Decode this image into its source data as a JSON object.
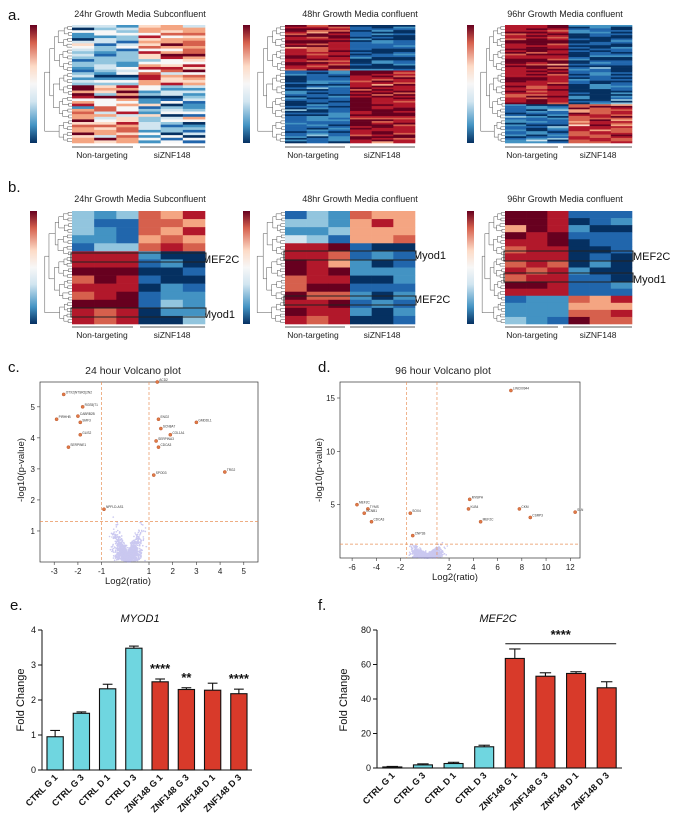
{
  "panels": {
    "a": "a.",
    "b": "b.",
    "c": "c.",
    "d": "d.",
    "e": "e.",
    "f": "f."
  },
  "heatmaps_a": [
    {
      "title": "24hr Growth Media Subconfluent",
      "group1": "Non-targeting",
      "group2": "siZNF148"
    },
    {
      "title": "48hr Growth Media confluent",
      "group1": "Non-targeting",
      "group2": "siZNF148"
    },
    {
      "title": "96hr Growth Media confluent",
      "group1": "Non-targeting",
      "group2": "siZNF148"
    }
  ],
  "heatmaps_b": [
    {
      "title": "24hr Growth Media Subconfluent",
      "group1": "Non-targeting",
      "group2": "siZNF148",
      "gene_top": "MEF2C",
      "gene_bottom": "Myod1"
    },
    {
      "title": "48hr Growth Media confluent",
      "group1": "Non-targeting",
      "group2": "siZNF148",
      "gene_top": "Myod1",
      "gene_bottom": "MEF2C"
    },
    {
      "title": "96hr Growth Media confluent",
      "group1": "Non-targeting",
      "group2": "siZNF148",
      "gene_top": "MEF2C",
      "gene_bottom": "Myod1"
    }
  ],
  "colors": {
    "red_dark": "#8b1a1a",
    "red": "#d7503a",
    "salmon": "#f4a582",
    "white": "#f7f7f7",
    "blue_light": "#92c5de",
    "blue": "#4a8cc6",
    "blue_dark": "#1f3e7a",
    "cyan_bar": "#6fd6e0",
    "red_bar": "#d83a2a",
    "volcano_pt": "#8b86e0"
  },
  "chart_data": [
    {
      "type": "scatter",
      "title": "24 hour Volcano plot",
      "xlabel": "Log2(ratio)",
      "ylabel": "-log10(p-value)",
      "xlim": [
        -3.6,
        5.6
      ],
      "ylim": [
        0,
        5.8
      ],
      "xticks": [
        "-3",
        "-2",
        "-1",
        "1",
        "2",
        "3",
        "4",
        "5"
      ],
      "yticks": [
        "1",
        "2",
        "3",
        "4",
        "5"
      ],
      "thresholds": {
        "x": [
          -1,
          1
        ],
        "y": 1.3
      },
      "labeled_points": [
        {
          "x": -2.6,
          "y": 5.4,
          "label": "OTX2|NTSR2|2N2"
        },
        {
          "x": -1.8,
          "y": 5.0,
          "label": "RGS5|T1"
        },
        {
          "x": -2.9,
          "y": 4.6,
          "label": "PIRHHB"
        },
        {
          "x": -2.0,
          "y": 4.7,
          "label": "CABRB2B"
        },
        {
          "x": -1.9,
          "y": 4.5,
          "label": "SMF3"
        },
        {
          "x": -1.9,
          "y": 4.1,
          "label": "GLIS2"
        },
        {
          "x": -2.4,
          "y": 3.7,
          "label": "SERPINE1"
        },
        {
          "x": -0.9,
          "y": 1.7,
          "label": "NPFLD-AS1"
        },
        {
          "x": 1.35,
          "y": 5.8,
          "label": "ACD2"
        },
        {
          "x": 1.4,
          "y": 4.6,
          "label": "ENO2"
        },
        {
          "x": 1.5,
          "y": 4.3,
          "label": "SCN8A7"
        },
        {
          "x": 1.3,
          "y": 3.9,
          "label": "SERPINA3"
        },
        {
          "x": 1.4,
          "y": 3.7,
          "label": "CDCA3"
        },
        {
          "x": 1.9,
          "y": 4.1,
          "label": "COL1A1"
        },
        {
          "x": 3.0,
          "y": 4.5,
          "label": "GMDDL1"
        },
        {
          "x": 4.2,
          "y": 2.9,
          "label": "TRG2"
        },
        {
          "x": 1.2,
          "y": 2.8,
          "label": "SPOD3"
        }
      ]
    },
    {
      "type": "scatter",
      "title": "96 hour Volcano plot",
      "xlabel": "Log2(ratio)",
      "ylabel": "-log10(p-value)",
      "xlim": [
        -7,
        12.8
      ],
      "ylim": [
        0,
        16.5
      ],
      "xticks": [
        "-6",
        "-4",
        "-2",
        "2",
        "4",
        "6",
        "8",
        "10",
        "12"
      ],
      "yticks": [
        "5",
        "10",
        "15"
      ],
      "thresholds": {
        "x": [
          -1.5,
          1
        ],
        "y": 1.3
      },
      "labeled_points": [
        {
          "x": 7.1,
          "y": 15.7,
          "label": "LINC00944"
        },
        {
          "x": 3.7,
          "y": 5.5,
          "label": "MYBPH"
        },
        {
          "x": 3.6,
          "y": 4.6,
          "label": "KLB4"
        },
        {
          "x": 4.6,
          "y": 3.4,
          "label": "MEF2C"
        },
        {
          "x": 7.8,
          "y": 4.6,
          "label": "CKM"
        },
        {
          "x": 8.7,
          "y": 3.8,
          "label": "CSRP3"
        },
        {
          "x": 12.4,
          "y": 4.3,
          "label": "SLN"
        },
        {
          "x": -5.6,
          "y": 5.0,
          "label": "MEF2C"
        },
        {
          "x": -4.7,
          "y": 4.6,
          "label": "TYMS"
        },
        {
          "x": -5.0,
          "y": 4.2,
          "label": "CCNB1"
        },
        {
          "x": -4.4,
          "y": 3.4,
          "label": "CDCA3"
        },
        {
          "x": -1.2,
          "y": 4.2,
          "label": "SOX4"
        },
        {
          "x": -1.0,
          "y": 2.1,
          "label": "CNP1B"
        }
      ]
    },
    {
      "type": "bar",
      "title": "MYOD1",
      "ylabel": "Fold Change",
      "ylim": [
        0,
        4
      ],
      "yticks": [
        "0",
        "1",
        "2",
        "3",
        "4"
      ],
      "categories": [
        "CTRL G 1",
        "CTRL G 3",
        "CTRL D 1",
        "CTRL D 3",
        "ZNF148 G 1",
        "ZNF148 G 3",
        "ZNF148 D 1",
        "ZNF148 D 3"
      ],
      "values": [
        0.95,
        1.62,
        2.32,
        3.48,
        2.52,
        2.3,
        2.28,
        2.18
      ],
      "errors": [
        0.18,
        0.04,
        0.13,
        0.06,
        0.08,
        0.05,
        0.2,
        0.13
      ],
      "groups": [
        "ctrl",
        "ctrl",
        "ctrl",
        "ctrl",
        "znf",
        "znf",
        "znf",
        "znf"
      ],
      "significance": [
        {
          "index": 4,
          "label": "****"
        },
        {
          "index": 5,
          "label": "**"
        },
        {
          "index": 7,
          "label": "****"
        }
      ]
    },
    {
      "type": "bar",
      "title": "MEF2C",
      "ylabel": "Fold Change",
      "ylim": [
        0,
        80
      ],
      "yticks": [
        "0",
        "20",
        "40",
        "60",
        "80"
      ],
      "categories": [
        "CTRL G 1",
        "CTRL G 3",
        "CTRL D 1",
        "CTRL D 3",
        "ZNF148 G 1",
        "ZNF148 G 3",
        "ZNF148 D 1",
        "ZNF148 D 3"
      ],
      "values": [
        0.6,
        1.8,
        2.6,
        12.3,
        63.5,
        53.2,
        54.8,
        46.5
      ],
      "errors": [
        0.3,
        0.6,
        0.7,
        0.9,
        5.5,
        2.0,
        1.0,
        3.5
      ],
      "groups": [
        "ctrl",
        "ctrl",
        "ctrl",
        "ctrl",
        "znf",
        "znf",
        "znf",
        "znf"
      ],
      "significance_span": {
        "from": 4,
        "to": 7,
        "label": "****"
      }
    }
  ]
}
